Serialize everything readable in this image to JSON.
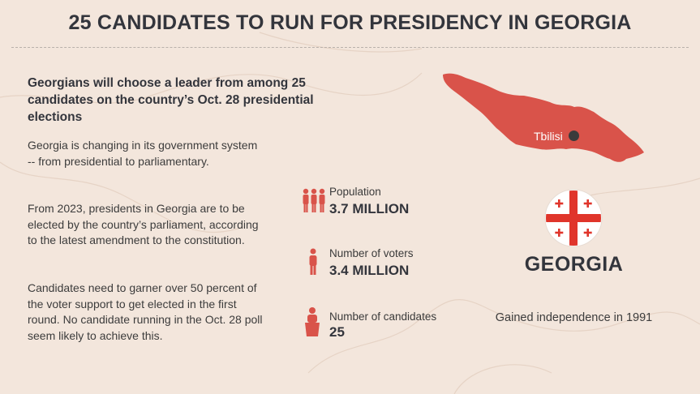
{
  "title": "25 CANDIDATES TO RUN FOR PRESIDENCY IN GEORGIA",
  "lead": "Georgians will choose a leader from among 25 candidates on the country’s Oct. 28 presidential elections",
  "paragraphs": [
    "Georgia is changing in its government system -- from presidential to parliamentary.",
    "From 2023, presidents in Georgia are to be elected by the country’s parliament, according to the latest amendment to the constitution.",
    "Candidates need to garner over 50 percent of the voter support to get elected in the first round. No candidate running in the Oct. 28 poll seem likely to achieve this."
  ],
  "stats": [
    {
      "label": "Population",
      "value": "3.7 MILLION",
      "icon": "people-group-icon"
    },
    {
      "label": "Number of voters",
      "value": "3.4 MILLION",
      "icon": "person-icon"
    },
    {
      "label": "Number of candidates",
      "value": "25",
      "icon": "candidate-podium-icon"
    }
  ],
  "map": {
    "capital": "Tbilisi",
    "fill_color": "#d9534a"
  },
  "country": {
    "name": "GEORGIA",
    "independence": "Gained independence in 1991",
    "flag_colors": {
      "field": "#ffffff",
      "cross": "#e0352b"
    }
  },
  "colors": {
    "background": "#f3e6dc",
    "accent_red": "#d9534a",
    "title": "#33353c"
  }
}
